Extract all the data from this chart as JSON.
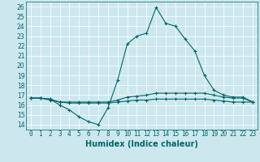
{
  "xlabel": "Humidex (Indice chaleur)",
  "background_color": "#cce8ee",
  "grid_color": "#ffffff",
  "line_color": "#006666",
  "xlim": [
    -0.5,
    23.5
  ],
  "ylim": [
    13.5,
    26.5
  ],
  "yticks": [
    14,
    15,
    16,
    17,
    18,
    19,
    20,
    21,
    22,
    23,
    24,
    25,
    26
  ],
  "xticks": [
    0,
    1,
    2,
    3,
    4,
    5,
    6,
    7,
    8,
    9,
    10,
    11,
    12,
    13,
    14,
    15,
    16,
    17,
    18,
    19,
    20,
    21,
    22,
    23
  ],
  "series1_x": [
    0,
    1,
    2,
    3,
    4,
    5,
    6,
    7,
    8,
    9,
    10,
    11,
    12,
    13,
    14,
    15,
    16,
    17,
    18,
    19,
    20,
    21,
    22,
    23
  ],
  "series1_y": [
    16.7,
    16.7,
    16.6,
    16.0,
    15.5,
    14.8,
    14.3,
    14.0,
    15.7,
    18.5,
    22.2,
    23.0,
    23.3,
    25.9,
    24.3,
    24.0,
    22.7,
    21.5,
    19.0,
    17.5,
    17.0,
    16.8,
    16.8,
    16.3
  ],
  "series2_x": [
    0,
    1,
    2,
    3,
    4,
    5,
    6,
    7,
    8,
    9,
    10,
    11,
    12,
    13,
    14,
    15,
    16,
    17,
    18,
    19,
    20,
    21,
    22,
    23
  ],
  "series2_y": [
    16.7,
    16.7,
    16.6,
    16.3,
    16.3,
    16.3,
    16.3,
    16.3,
    16.3,
    16.5,
    16.8,
    16.9,
    17.0,
    17.2,
    17.2,
    17.2,
    17.2,
    17.2,
    17.2,
    17.0,
    16.8,
    16.7,
    16.7,
    16.3
  ],
  "series3_x": [
    0,
    1,
    2,
    3,
    4,
    5,
    6,
    7,
    8,
    9,
    10,
    11,
    12,
    13,
    14,
    15,
    16,
    17,
    18,
    19,
    20,
    21,
    22,
    23
  ],
  "series3_y": [
    16.7,
    16.7,
    16.5,
    16.3,
    16.2,
    16.2,
    16.2,
    16.2,
    16.2,
    16.3,
    16.4,
    16.5,
    16.5,
    16.6,
    16.6,
    16.6,
    16.6,
    16.6,
    16.6,
    16.5,
    16.4,
    16.3,
    16.3,
    16.3
  ],
  "xlabel_fontsize": 7,
  "tick_fontsize": 5.5
}
